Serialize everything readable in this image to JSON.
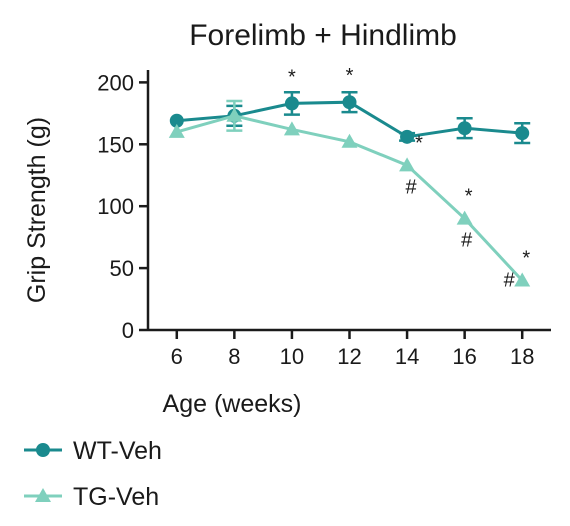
{
  "chart_data": {
    "type": "line",
    "title": "Forelimb + Hindlimb",
    "xlabel": "Age (weeks)",
    "ylabel": "Grip Strength (g)",
    "x": [
      6,
      8,
      10,
      12,
      14,
      16,
      18
    ],
    "xlim": [
      5,
      19
    ],
    "ylim": [
      0,
      210
    ],
    "yticks": [
      0,
      50,
      100,
      150,
      200
    ],
    "legend_position": "bottom-left",
    "grid": false,
    "series": [
      {
        "name": "WT-Veh",
        "color": "#1a8a8e",
        "marker": "circle",
        "values": [
          169,
          173,
          183,
          184,
          156,
          163,
          159
        ],
        "errors": [
          0,
          8,
          9,
          8,
          3,
          8,
          8
        ]
      },
      {
        "name": "TG-Veh",
        "color": "#7fd0bd",
        "marker": "triangle",
        "values": [
          160,
          173,
          162,
          152,
          133,
          90,
          40
        ],
        "errors": [
          0,
          12,
          0,
          0,
          0,
          0,
          0
        ]
      }
    ],
    "annotations": [
      {
        "x": 10,
        "y": 183,
        "text": "*",
        "series": "WT-Veh"
      },
      {
        "x": 12,
        "y": 184,
        "text": "*",
        "series": "WT-Veh"
      },
      {
        "x": 14,
        "y": 133,
        "text": "*",
        "series": "TG-Veh"
      },
      {
        "x": 14,
        "y": 133,
        "text": "#",
        "series": "TG-Veh"
      },
      {
        "x": 16,
        "y": 90,
        "text": "*",
        "series": "TG-Veh"
      },
      {
        "x": 16,
        "y": 90,
        "text": "#",
        "series": "TG-Veh"
      },
      {
        "x": 18,
        "y": 40,
        "text": "*",
        "series": "TG-Veh"
      },
      {
        "x": 18,
        "y": 40,
        "text": "#",
        "series": "TG-Veh"
      }
    ]
  }
}
